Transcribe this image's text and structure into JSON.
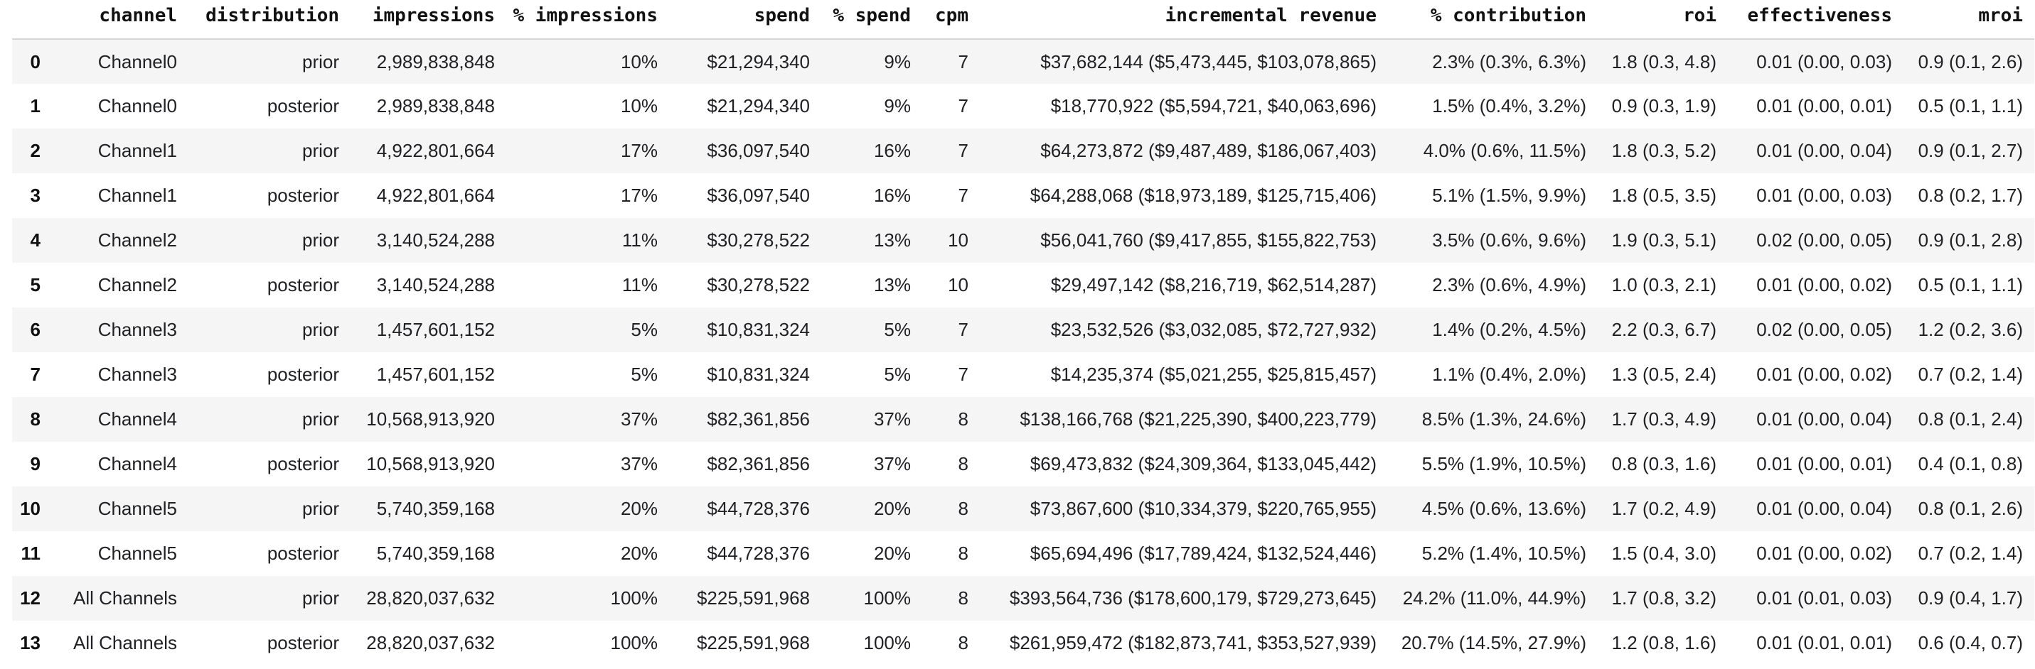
{
  "colors": {
    "background": "#ffffff",
    "row_stripe": "#f5f5f5",
    "header_border": "#d6d6d6",
    "body_text": "#202124",
    "header_text": "#111111"
  },
  "table": {
    "columns": [
      {
        "key": "index",
        "label": ""
      },
      {
        "key": "channel",
        "label": "channel"
      },
      {
        "key": "distribution",
        "label": "distribution"
      },
      {
        "key": "impressions",
        "label": "impressions"
      },
      {
        "key": "pct-impressions",
        "label": "% impressions"
      },
      {
        "key": "spend",
        "label": "spend"
      },
      {
        "key": "pct-spend",
        "label": "% spend"
      },
      {
        "key": "cpm",
        "label": "cpm"
      },
      {
        "key": "incremental-revenue",
        "label": "incremental revenue"
      },
      {
        "key": "pct-contribution",
        "label": "% contribution"
      },
      {
        "key": "roi",
        "label": "roi"
      },
      {
        "key": "effectiveness",
        "label": "effectiveness"
      },
      {
        "key": "mroi",
        "label": "mroi"
      }
    ],
    "rows": [
      [
        "0",
        "Channel0",
        "prior",
        "2,989,838,848",
        "10%",
        "$21,294,340",
        "9%",
        "7",
        "$37,682,144 ($5,473,445, $103,078,865)",
        "2.3% (0.3%, 6.3%)",
        "1.8 (0.3, 4.8)",
        "0.01 (0.00, 0.03)",
        "0.9 (0.1, 2.6)"
      ],
      [
        "1",
        "Channel0",
        "posterior",
        "2,989,838,848",
        "10%",
        "$21,294,340",
        "9%",
        "7",
        "$18,770,922 ($5,594,721, $40,063,696)",
        "1.5% (0.4%, 3.2%)",
        "0.9 (0.3, 1.9)",
        "0.01 (0.00, 0.01)",
        "0.5 (0.1, 1.1)"
      ],
      [
        "2",
        "Channel1",
        "prior",
        "4,922,801,664",
        "17%",
        "$36,097,540",
        "16%",
        "7",
        "$64,273,872 ($9,487,489, $186,067,403)",
        "4.0% (0.6%, 11.5%)",
        "1.8 (0.3, 5.2)",
        "0.01 (0.00, 0.04)",
        "0.9 (0.1, 2.7)"
      ],
      [
        "3",
        "Channel1",
        "posterior",
        "4,922,801,664",
        "17%",
        "$36,097,540",
        "16%",
        "7",
        "$64,288,068 ($18,973,189, $125,715,406)",
        "5.1% (1.5%, 9.9%)",
        "1.8 (0.5, 3.5)",
        "0.01 (0.00, 0.03)",
        "0.8 (0.2, 1.7)"
      ],
      [
        "4",
        "Channel2",
        "prior",
        "3,140,524,288",
        "11%",
        "$30,278,522",
        "13%",
        "10",
        "$56,041,760 ($9,417,855, $155,822,753)",
        "3.5% (0.6%, 9.6%)",
        "1.9 (0.3, 5.1)",
        "0.02 (0.00, 0.05)",
        "0.9 (0.1, 2.8)"
      ],
      [
        "5",
        "Channel2",
        "posterior",
        "3,140,524,288",
        "11%",
        "$30,278,522",
        "13%",
        "10",
        "$29,497,142 ($8,216,719, $62,514,287)",
        "2.3% (0.6%, 4.9%)",
        "1.0 (0.3, 2.1)",
        "0.01 (0.00, 0.02)",
        "0.5 (0.1, 1.1)"
      ],
      [
        "6",
        "Channel3",
        "prior",
        "1,457,601,152",
        "5%",
        "$10,831,324",
        "5%",
        "7",
        "$23,532,526 ($3,032,085, $72,727,932)",
        "1.4% (0.2%, 4.5%)",
        "2.2 (0.3, 6.7)",
        "0.02 (0.00, 0.05)",
        "1.2 (0.2, 3.6)"
      ],
      [
        "7",
        "Channel3",
        "posterior",
        "1,457,601,152",
        "5%",
        "$10,831,324",
        "5%",
        "7",
        "$14,235,374 ($5,021,255, $25,815,457)",
        "1.1% (0.4%, 2.0%)",
        "1.3 (0.5, 2.4)",
        "0.01 (0.00, 0.02)",
        "0.7 (0.2, 1.4)"
      ],
      [
        "8",
        "Channel4",
        "prior",
        "10,568,913,920",
        "37%",
        "$82,361,856",
        "37%",
        "8",
        "$138,166,768 ($21,225,390, $400,223,779)",
        "8.5% (1.3%, 24.6%)",
        "1.7 (0.3, 4.9)",
        "0.01 (0.00, 0.04)",
        "0.8 (0.1, 2.4)"
      ],
      [
        "9",
        "Channel4",
        "posterior",
        "10,568,913,920",
        "37%",
        "$82,361,856",
        "37%",
        "8",
        "$69,473,832 ($24,309,364, $133,045,442)",
        "5.5% (1.9%, 10.5%)",
        "0.8 (0.3, 1.6)",
        "0.01 (0.00, 0.01)",
        "0.4 (0.1, 0.8)"
      ],
      [
        "10",
        "Channel5",
        "prior",
        "5,740,359,168",
        "20%",
        "$44,728,376",
        "20%",
        "8",
        "$73,867,600 ($10,334,379, $220,765,955)",
        "4.5% (0.6%, 13.6%)",
        "1.7 (0.2, 4.9)",
        "0.01 (0.00, 0.04)",
        "0.8 (0.1, 2.6)"
      ],
      [
        "11",
        "Channel5",
        "posterior",
        "5,740,359,168",
        "20%",
        "$44,728,376",
        "20%",
        "8",
        "$65,694,496 ($17,789,424, $132,524,446)",
        "5.2% (1.4%, 10.5%)",
        "1.5 (0.4, 3.0)",
        "0.01 (0.00, 0.02)",
        "0.7 (0.2, 1.4)"
      ],
      [
        "12",
        "All Channels",
        "prior",
        "28,820,037,632",
        "100%",
        "$225,591,968",
        "100%",
        "8",
        "$393,564,736 ($178,600,179, $729,273,645)",
        "24.2% (11.0%, 44.9%)",
        "1.7 (0.8, 3.2)",
        "0.01 (0.01, 0.03)",
        "0.9 (0.4, 1.7)"
      ],
      [
        "13",
        "All Channels",
        "posterior",
        "28,820,037,632",
        "100%",
        "$225,591,968",
        "100%",
        "8",
        "$261,959,472 ($182,873,741, $353,527,939)",
        "20.7% (14.5%, 27.9%)",
        "1.2 (0.8, 1.6)",
        "0.01 (0.01, 0.01)",
        "0.6 (0.4, 0.7)"
      ]
    ]
  }
}
